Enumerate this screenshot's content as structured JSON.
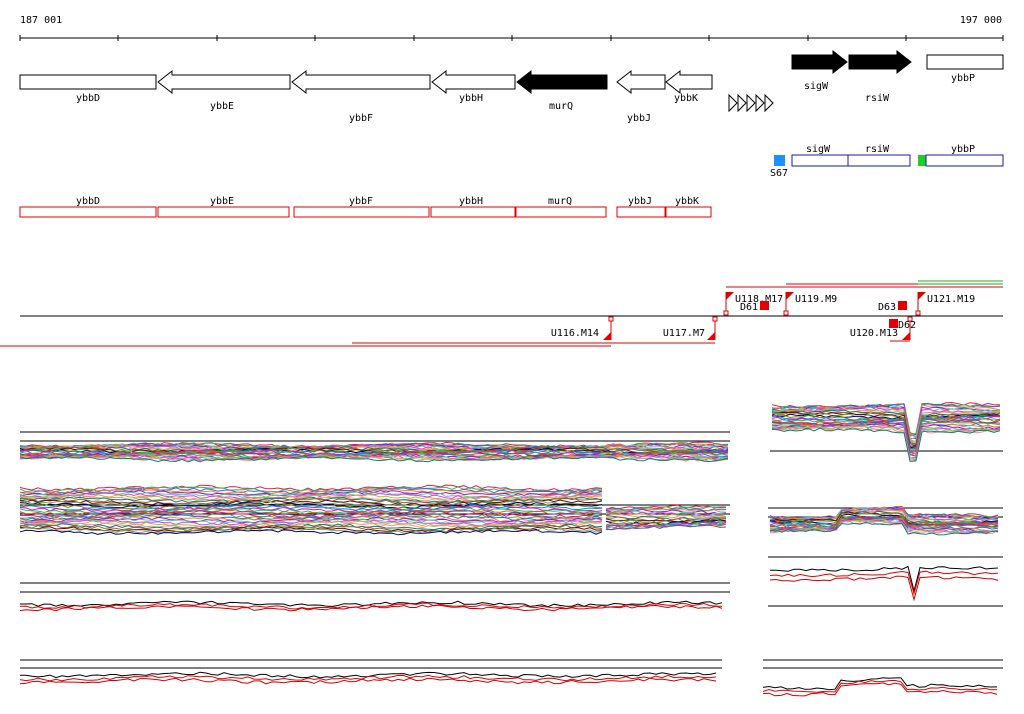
{
  "coordinates": {
    "start": "187 001",
    "end": "197 000"
  },
  "genes": [
    {
      "name": "ybbD",
      "strand": "none",
      "fill": "#ffffff"
    },
    {
      "name": "ybbE",
      "strand": "left",
      "fill": "#ffffff"
    },
    {
      "name": "ybbF",
      "strand": "left",
      "fill": "#ffffff"
    },
    {
      "name": "ybbH",
      "strand": "left",
      "fill": "#ffffff"
    },
    {
      "name": "murQ",
      "strand": "left",
      "fill": "#000000"
    },
    {
      "name": "ybbJ",
      "strand": "left",
      "fill": "#ffffff"
    },
    {
      "name": "ybbK",
      "strand": "left",
      "fill": "#ffffff"
    },
    {
      "name": "sigW",
      "strand": "right",
      "fill": "#000000"
    },
    {
      "name": "rsiW",
      "strand": "right",
      "fill": "#000000"
    },
    {
      "name": "ybbP",
      "strand": "none",
      "fill": "#ffffff"
    }
  ],
  "blue_features": [
    {
      "name": "sigW"
    },
    {
      "name": "rsiW"
    },
    {
      "name": "ybbP"
    }
  ],
  "markers": [
    {
      "name": "S67",
      "color": "#1e90ff"
    },
    {
      "name": "ybbP-marker",
      "color": "#22cc22"
    }
  ],
  "red_features": [
    {
      "name": "ybbD"
    },
    {
      "name": "ybbE"
    },
    {
      "name": "ybbF"
    },
    {
      "name": "ybbH"
    },
    {
      "name": "murQ"
    },
    {
      "name": "ybbJ"
    },
    {
      "name": "ybbK"
    }
  ],
  "transcripts_upper": [
    {
      "name": "U118.M17"
    },
    {
      "name": "U119.M9"
    },
    {
      "name": "U121.M19"
    }
  ],
  "transcripts_lower": [
    {
      "name": "U116.M14"
    },
    {
      "name": "U117.M7"
    },
    {
      "name": "U120.M13"
    }
  ],
  "downshifts": [
    {
      "name": "D61"
    },
    {
      "name": "D63"
    },
    {
      "name": "D62"
    }
  ],
  "colors": {
    "feature_red": "#e00000",
    "feature_blue": "#1a1aa0",
    "axis": "#000000"
  }
}
